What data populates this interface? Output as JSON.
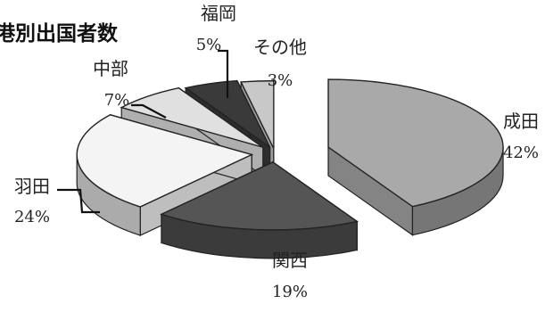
{
  "chart_data": {
    "type": "pie",
    "title": "港別出国者数",
    "slices": [
      {
        "name": "成田",
        "value": 42,
        "label": "42%",
        "color": "#a9a9a9"
      },
      {
        "name": "関西",
        "value": 19,
        "label": "19%",
        "color": "#555555"
      },
      {
        "name": "羽田",
        "value": 24,
        "label": "24%",
        "color": "#f4f4f4"
      },
      {
        "name": "中部",
        "value": 7,
        "label": "7%",
        "color": "#e0e0e0"
      },
      {
        "name": "福岡",
        "value": 5,
        "label": "5%",
        "color": "#3a3a3a"
      },
      {
        "name": "その他",
        "value": 3,
        "label": "3%",
        "color": "#c8c8c8"
      }
    ],
    "style": "3d-exploded",
    "legend": "none",
    "grid": false
  }
}
